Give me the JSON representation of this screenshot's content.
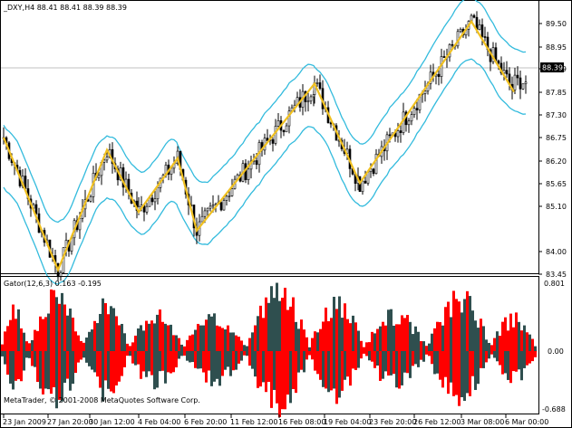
{
  "main_chart": {
    "header": "_DXY,H4  88.41 88.41 88.39 88.39",
    "price_labels": [
      "89.50",
      "88.95",
      "88.39",
      "87.85",
      "87.30",
      "86.75",
      "86.20",
      "85.65",
      "85.10",
      "84.00",
      "83.45"
    ],
    "current_price": "88.39"
  },
  "indicator": {
    "header": "Gator(12,6,3) 0.163 -0.195",
    "top_value": "0.801",
    "zero_value": "0.00",
    "bottom_value": "-0.688"
  },
  "copyright": "MetaTrader, © 2001-2008 MetaQuotes Software Corp.",
  "time_labels": [
    "23 Jan 2009",
    "27 Jan 20:00",
    "30 Jan 12:00",
    "4 Feb 04:00",
    "6 Feb 20:00",
    "11 Feb 12:00",
    "16 Feb 08:00",
    "19 Feb 04:00",
    "23 Feb 20:00",
    "26 Feb 12:00",
    "3 Mar 08:00",
    "6 Mar 00:00"
  ],
  "colors": {
    "background": "#ffffff",
    "grid": "#c0c0c0",
    "bands": "#33bbdd",
    "zigzag": "#f0c020",
    "candle": "#000000",
    "gator_up": "#ff0000",
    "gator_down": "#2f4f4f"
  }
}
